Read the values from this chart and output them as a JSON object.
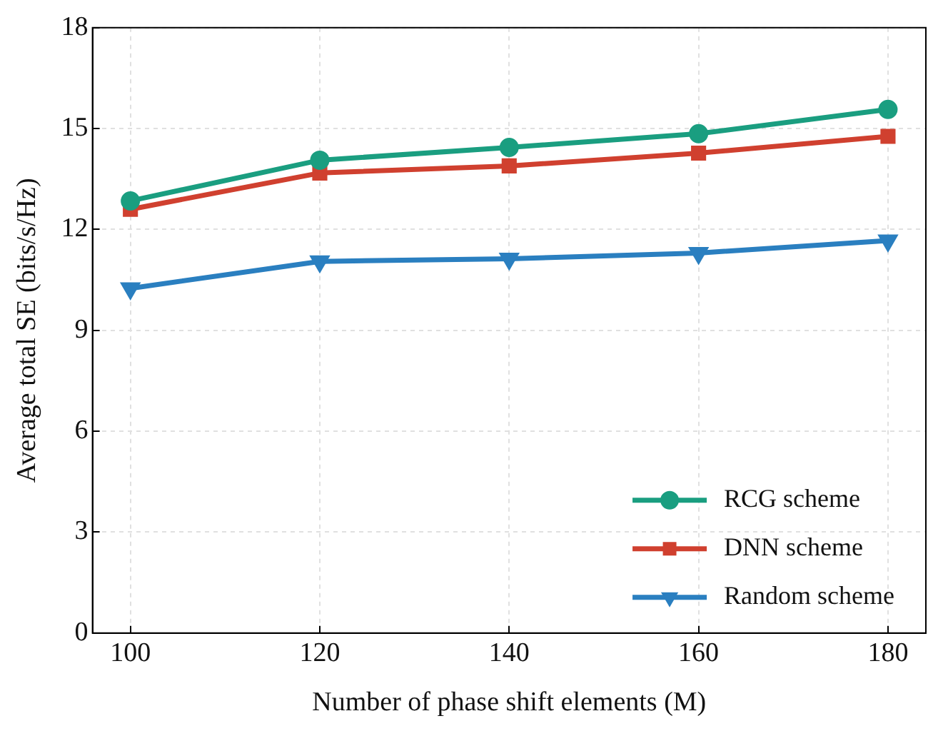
{
  "chart_data": {
    "type": "line",
    "xlabel": "Number of phase shift elements (M)",
    "ylabel": "Average total SE (bits/s/Hz)",
    "x": [
      100,
      120,
      140,
      160,
      180
    ],
    "series": [
      {
        "name": "RCG scheme",
        "color": "#1a9e80",
        "marker": "circle",
        "values": [
          12.85,
          14.06,
          14.44,
          14.85,
          15.57
        ]
      },
      {
        "name": "DNN scheme",
        "color": "#d0402f",
        "marker": "square",
        "values": [
          12.6,
          13.68,
          13.89,
          14.27,
          14.77
        ]
      },
      {
        "name": "Random scheme",
        "color": "#2a7fc0",
        "marker": "triangle",
        "values": [
          10.25,
          11.05,
          11.13,
          11.3,
          11.67
        ]
      }
    ],
    "xlim": [
      96,
      184
    ],
    "xticks": [
      100,
      120,
      140,
      160,
      180
    ],
    "ylim": [
      0,
      18
    ],
    "yticks": [
      0,
      3,
      6,
      9,
      12,
      15,
      18
    ],
    "grid": true,
    "legend": "bottom right",
    "line_style": "solid"
  }
}
